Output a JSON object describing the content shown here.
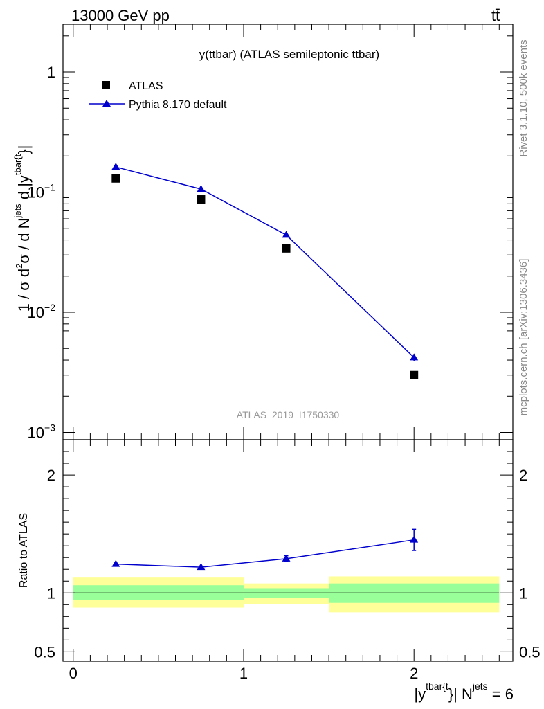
{
  "header": {
    "left": "13000 GeV pp",
    "right": "tt̄"
  },
  "side_labels": {
    "right_top": "Rivet 3.1.10,  500k events",
    "right_bottom": "mcplots.cern.ch [arXiv:1306.3436]"
  },
  "chart_data": [
    {
      "type": "scatter",
      "title": "y(ttbar) (ATLAS semileptonic ttbar)",
      "watermark": "ATLAS_2019_I1750330",
      "ylabel": {
        "main": "1 / σ d",
        "sup2": "2",
        "sigma_d": "σ / d N",
        "jets": "jets",
        "d_abs_y": " d |y",
        "tbar_t": "tbar{t",
        "close": "}|"
      },
      "y_scale": "log",
      "ylim": [
        0.00087,
        2.5
      ],
      "xlim": [
        -0.06,
        2.58
      ],
      "y_ticks": [
        {
          "value": 1,
          "label": "1",
          "sup": ""
        },
        {
          "value": 0.1,
          "label": "10",
          "sup": "−1"
        },
        {
          "value": 0.01,
          "label": "10",
          "sup": "−2"
        },
        {
          "value": 0.001,
          "label": "10",
          "sup": "−3"
        }
      ],
      "legend": {
        "position": "top-left",
        "entries": [
          {
            "name": "ATLAS",
            "marker": "square",
            "color": "#000000"
          },
          {
            "name": "Pythia 8.170 default",
            "marker": "triangle",
            "color": "#0000cc"
          }
        ]
      },
      "series": [
        {
          "name": "ATLAS",
          "x": [
            0.25,
            0.75,
            1.25,
            2.0
          ],
          "y": [
            0.13,
            0.087,
            0.034,
            0.003
          ]
        },
        {
          "name": "Pythia 8.170 default",
          "x": [
            0.25,
            0.75,
            1.25,
            2.0
          ],
          "y": [
            0.162,
            0.106,
            0.044,
            0.0042
          ],
          "yerr_low": [
            0.0,
            0.0,
            0.0,
            0.0003
          ],
          "yerr_high": [
            0.0,
            0.0,
            0.0,
            0.0003
          ]
        }
      ]
    },
    {
      "type": "line",
      "ylabel": "Ratio to ATLAS",
      "xlabel": {
        "prefix": "|y",
        "sup1": "tbar{t",
        "mid": "}| N",
        "sup2": "jets",
        "suffix": " = 6"
      },
      "xlim": [
        -0.06,
        2.58
      ],
      "ylim": [
        0.42,
        2.3
      ],
      "x_ticks": [
        {
          "value": 0,
          "label": "0"
        },
        {
          "value": 1,
          "label": "1"
        },
        {
          "value": 2,
          "label": "2"
        }
      ],
      "y_ticks": [
        {
          "value": 0.5,
          "label": "0.5"
        },
        {
          "value": 1,
          "label": "1"
        },
        {
          "value": 2,
          "label": "2"
        }
      ],
      "band_colors": {
        "outer": "#ffff99",
        "inner": "#99ff99",
        "line": "#0000cc"
      },
      "bands": [
        {
          "x0": 0.0,
          "x1": 1.0,
          "outer": [
            0.875,
            1.13
          ],
          "inner": [
            0.94,
            1.065
          ]
        },
        {
          "x0": 1.0,
          "x1": 1.5,
          "outer": [
            0.905,
            1.08
          ],
          "inner": [
            0.96,
            1.04
          ]
        },
        {
          "x0": 1.5,
          "x1": 2.5,
          "outer": [
            0.835,
            1.14
          ],
          "inner": [
            0.915,
            1.08
          ]
        }
      ],
      "series": [
        {
          "name": "Pythia 8.170 default",
          "x": [
            0.25,
            0.75,
            1.25,
            2.0
          ],
          "y": [
            1.245,
            1.218,
            1.29,
            1.45
          ],
          "yerr_low": [
            0.0,
            0.0,
            0.025,
            0.09
          ],
          "yerr_high": [
            0.0,
            0.0,
            0.025,
            0.09
          ]
        }
      ]
    }
  ]
}
